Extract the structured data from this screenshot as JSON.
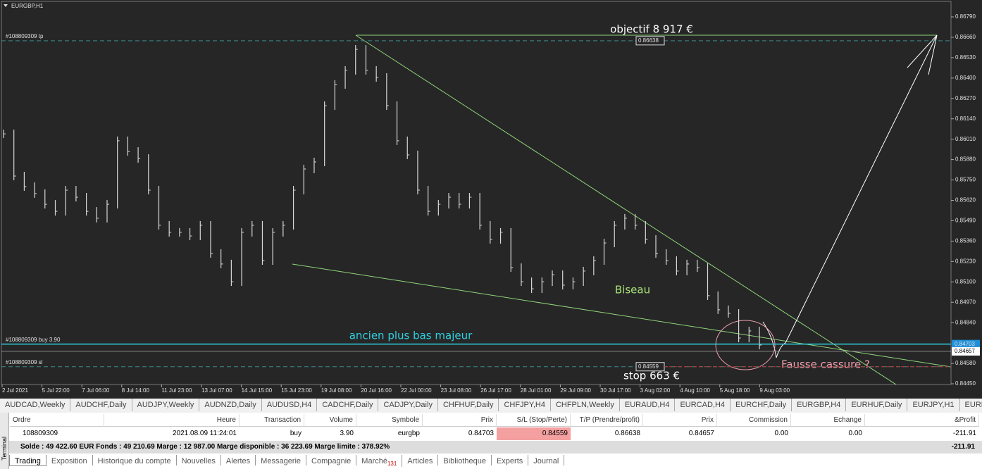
{
  "chart": {
    "symbol": "EURGBP,H1",
    "price_ticks": [
      {
        "value": 0.8679,
        "label": "0.86790"
      },
      {
        "value": 0.8666,
        "label": "0.86660"
      },
      {
        "value": 0.8653,
        "label": "0.86530"
      },
      {
        "value": 0.864,
        "label": "0.86400"
      },
      {
        "value": 0.8627,
        "label": "0.86270"
      },
      {
        "value": 0.8614,
        "label": "0.86140"
      },
      {
        "value": 0.8601,
        "label": "0.86010"
      },
      {
        "value": 0.8588,
        "label": "0.85880"
      },
      {
        "value": 0.8575,
        "label": "0.85750"
      },
      {
        "value": 0.8562,
        "label": "0.85620"
      },
      {
        "value": 0.8549,
        "label": "0.85490"
      },
      {
        "value": 0.8536,
        "label": "0.85360"
      },
      {
        "value": 0.8523,
        "label": "0.85230"
      },
      {
        "value": 0.851,
        "label": "0.85100"
      },
      {
        "value": 0.8497,
        "label": "0.84970"
      },
      {
        "value": 0.8484,
        "label": "0.84840"
      },
      {
        "value": 0.8458,
        "label": "0.84580"
      },
      {
        "value": 0.8445,
        "label": "0.84450"
      }
    ],
    "time_labels": [
      "2 Jul 2021",
      "5 Jul 22:00",
      "7 Jul 06:00",
      "8 Jul 14:00",
      "11 Jul 23:00",
      "13 Jul 07:00",
      "14 Jul 15:00",
      "15 Jul 23:00",
      "19 Jul 08:00",
      "20 Jul 16:00",
      "22 Jul 00:00",
      "23 Jul 08:00",
      "26 Jul 17:00",
      "28 Jul 01:00",
      "29 Jul 09:00",
      "30 Jul 17:00",
      "3 Aug 02:00",
      "4 Aug 10:00",
      "5 Aug 18:00",
      "9 Aug 03:00"
    ],
    "closes": [
      0.86044,
      0.85775,
      0.85708,
      0.85663,
      0.85595,
      0.8555,
      0.85685,
      0.8564,
      0.8555,
      0.85506,
      0.85595,
      0.86,
      0.85932,
      0.85887,
      0.85685,
      0.85461,
      0.85416,
      0.85416,
      0.85393,
      0.85461,
      0.85281,
      0.85214,
      0.85101,
      0.85416,
      0.85461,
      0.85236,
      0.85416,
      0.85461,
      0.85685,
      0.8582,
      0.85865,
      0.86224,
      0.86359,
      0.86449,
      0.86583,
      0.86449,
      0.86404,
      0.86224,
      0.86,
      0.8591,
      0.85685,
      0.8555,
      0.85595,
      0.8564,
      0.85595,
      0.8564,
      0.85461,
      0.85371,
      0.85416,
      0.85191,
      0.85101,
      0.85056,
      0.85101,
      0.85146,
      0.85079,
      0.85101,
      0.85169,
      0.85236,
      0.85348,
      0.85461,
      0.85506,
      0.85461,
      0.85371,
      0.85281,
      0.85236,
      0.85169,
      0.85214,
      0.85191,
      0.85012,
      0.84922,
      0.84899,
      0.84742,
      0.84787,
      0.84697
    ],
    "levels": [
      {
        "name": "#108809309 tp",
        "value": 0.86638,
        "value_label": "0.86638"
      },
      {
        "name": "#108809309 buy 3.90",
        "value": 0.84703,
        "value_label": "0.84703"
      },
      {
        "name": "#108809309 sl",
        "value": 0.84559,
        "value_label": "0.84559"
      }
    ],
    "bid": {
      "value": 0.84657,
      "value_label": "0.84657"
    },
    "annotations": {
      "target": "objectif 8 917 €",
      "pattern": "Biseau",
      "support": "ancien plus bas majeur",
      "stop": "stop 663 €",
      "fake": "Fausse cassure ?"
    }
  },
  "symbol_tabs": [
    "AUDCAD,Weekly",
    "AUDCHF,Daily",
    "AUDJPY,Weekly",
    "AUDNZD,Daily",
    "AUDUSD,H4",
    "CADCHF,Daily",
    "CADJPY,Daily",
    "CHFHUF,Daily",
    "CHFJPY,H4",
    "CHFPLN,Weekly",
    "EURAUD,H4",
    "EURCAD,H4",
    "EURCHF,Daily",
    "EURGBP,H4",
    "EURHUF,Daily",
    "EURJPY,H1",
    "EURNO"
  ],
  "terminal": {
    "side_label": "Terminal",
    "columns": [
      "Ordre",
      "Heure",
      "Transaction",
      "Volume",
      "Symbole",
      "Prix",
      "S/L (Stop/Perte)",
      "T/P (Prendre/profit)",
      "Prix",
      "Commission",
      "Echange",
      "&Profit"
    ],
    "rows": [
      [
        "108809309",
        "2021.08.09 11:24:01",
        "buy",
        "3.90",
        "eurgbp",
        "0.84703",
        "0.84559",
        "0.86638",
        "0.84657",
        "0.00",
        "0.00",
        "-211.91"
      ]
    ],
    "summary": "Solde : 49 422.60 EUR  Fonds : 49 210.69  Marge : 12 987.00  Marge disponible : 36 223.69  Marge limite : 378.92%",
    "summary_profit": "-211.91",
    "tabs": [
      "Trading",
      "Exposition",
      "Historique du compte",
      "Nouvelles",
      "Alertes",
      "Messagerie",
      "Compagnie",
      "Marché",
      "Articles",
      "Bibliotheque",
      "Experts",
      "Journal"
    ],
    "market_count": "131"
  }
}
